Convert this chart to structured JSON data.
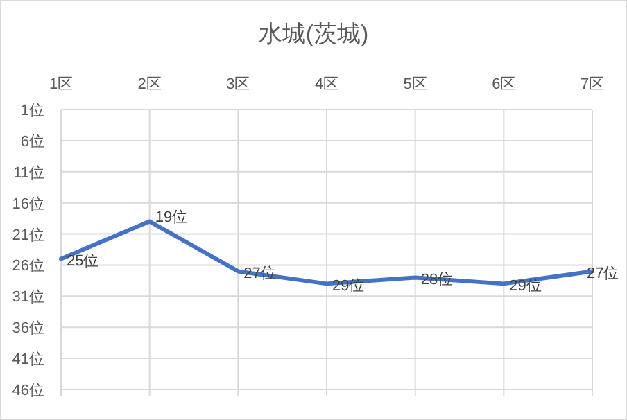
{
  "chart_data": {
    "type": "line",
    "title": "水城(茨城)",
    "categories": [
      "1区",
      "2区",
      "3区",
      "4区",
      "5区",
      "6区",
      "7区"
    ],
    "values": [
      25,
      19,
      27,
      29,
      28,
      29,
      27
    ],
    "value_labels": [
      "25位",
      "19位",
      "27位",
      "29位",
      "28位",
      "29位",
      "27位"
    ],
    "color": "#4472c4",
    "ylim": [
      46,
      1
    ],
    "yticks": [
      {
        "value": 1,
        "label": "1位"
      },
      {
        "value": 6,
        "label": "6位"
      },
      {
        "value": 11,
        "label": "11位"
      },
      {
        "value": 16,
        "label": "16位"
      },
      {
        "value": 21,
        "label": "21位"
      },
      {
        "value": 26,
        "label": "26位"
      },
      {
        "value": 31,
        "label": "31位"
      },
      {
        "value": 36,
        "label": "36位"
      },
      {
        "value": 41,
        "label": "41位"
      },
      {
        "value": 46,
        "label": "46位"
      }
    ],
    "grid": true
  }
}
